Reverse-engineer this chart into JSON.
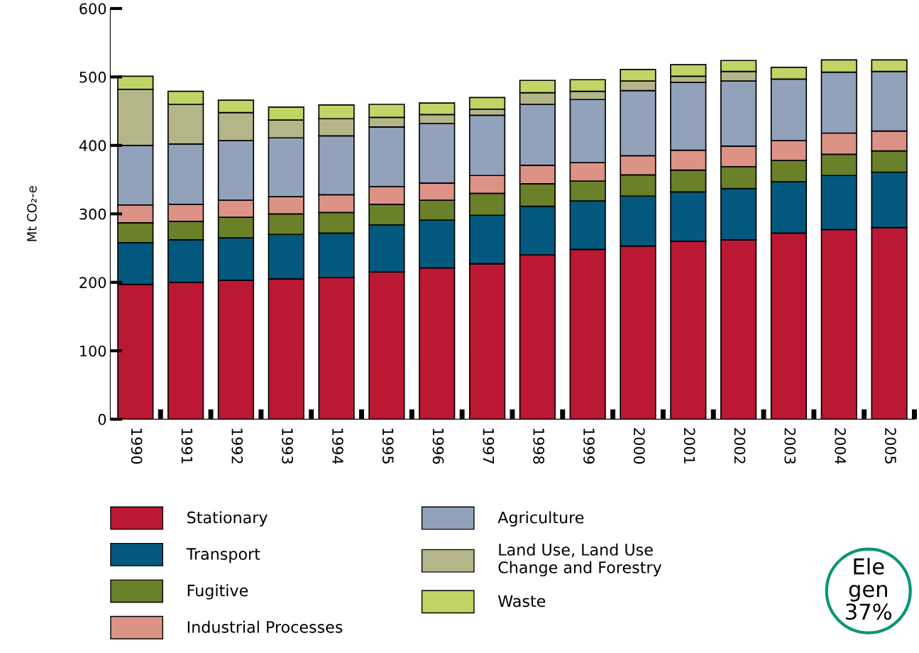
{
  "chart_data": {
    "type": "bar",
    "stacked": true,
    "ylabel": "Mt CO₂-e",
    "categories": [
      "1990",
      "1991",
      "1992",
      "1993",
      "1994",
      "1995",
      "1996",
      "1997",
      "1998",
      "1999",
      "2000",
      "2001",
      "2002",
      "2003",
      "2004",
      "2005"
    ],
    "series": [
      {
        "name": "Stationary",
        "color": "#bb1833",
        "values": [
          197,
          200,
          203,
          205,
          207,
          215,
          221,
          227,
          240,
          248,
          253,
          260,
          262,
          272,
          277,
          280
        ]
      },
      {
        "name": "Transport",
        "color": "#02597d",
        "values": [
          61,
          62,
          62,
          65,
          65,
          69,
          70,
          71,
          71,
          71,
          73,
          72,
          75,
          75,
          79,
          81
        ]
      },
      {
        "name": "Fugitive",
        "color": "#6a8029",
        "values": [
          29,
          27,
          30,
          30,
          30,
          30,
          29,
          32,
          33,
          29,
          31,
          32,
          32,
          31,
          31,
          31
        ]
      },
      {
        "name": "Industrial Processes",
        "color": "#dc9385",
        "values": [
          26,
          25,
          25,
          25,
          26,
          26,
          25,
          26,
          27,
          27,
          28,
          29,
          30,
          29,
          31,
          29
        ]
      },
      {
        "name": "Agriculture",
        "color": "#92a2ba",
        "values": [
          87,
          88,
          87,
          86,
          86,
          87,
          87,
          88,
          89,
          92,
          95,
          99,
          95,
          90,
          89,
          87
        ]
      },
      {
        "name": "Land Use, Land Use\nChange and Forestry",
        "color": "#b4b68a",
        "values": [
          82,
          58,
          41,
          26,
          25,
          14,
          13,
          9,
          17,
          12,
          14,
          9,
          14,
          null,
          null,
          null
        ]
      },
      {
        "name": "Waste",
        "color": "#c1d466",
        "values": [
          19,
          19,
          18,
          19,
          20,
          19,
          17,
          17,
          18,
          17,
          17,
          17,
          16,
          17,
          18,
          17
        ]
      }
    ],
    "ylim": [
      0,
      600
    ],
    "yticks": [
      0,
      100,
      200,
      300,
      400,
      500,
      600
    ],
    "grid": false,
    "legend": "bottom",
    "annotations": [
      "Ele\ngen\n37%"
    ]
  }
}
